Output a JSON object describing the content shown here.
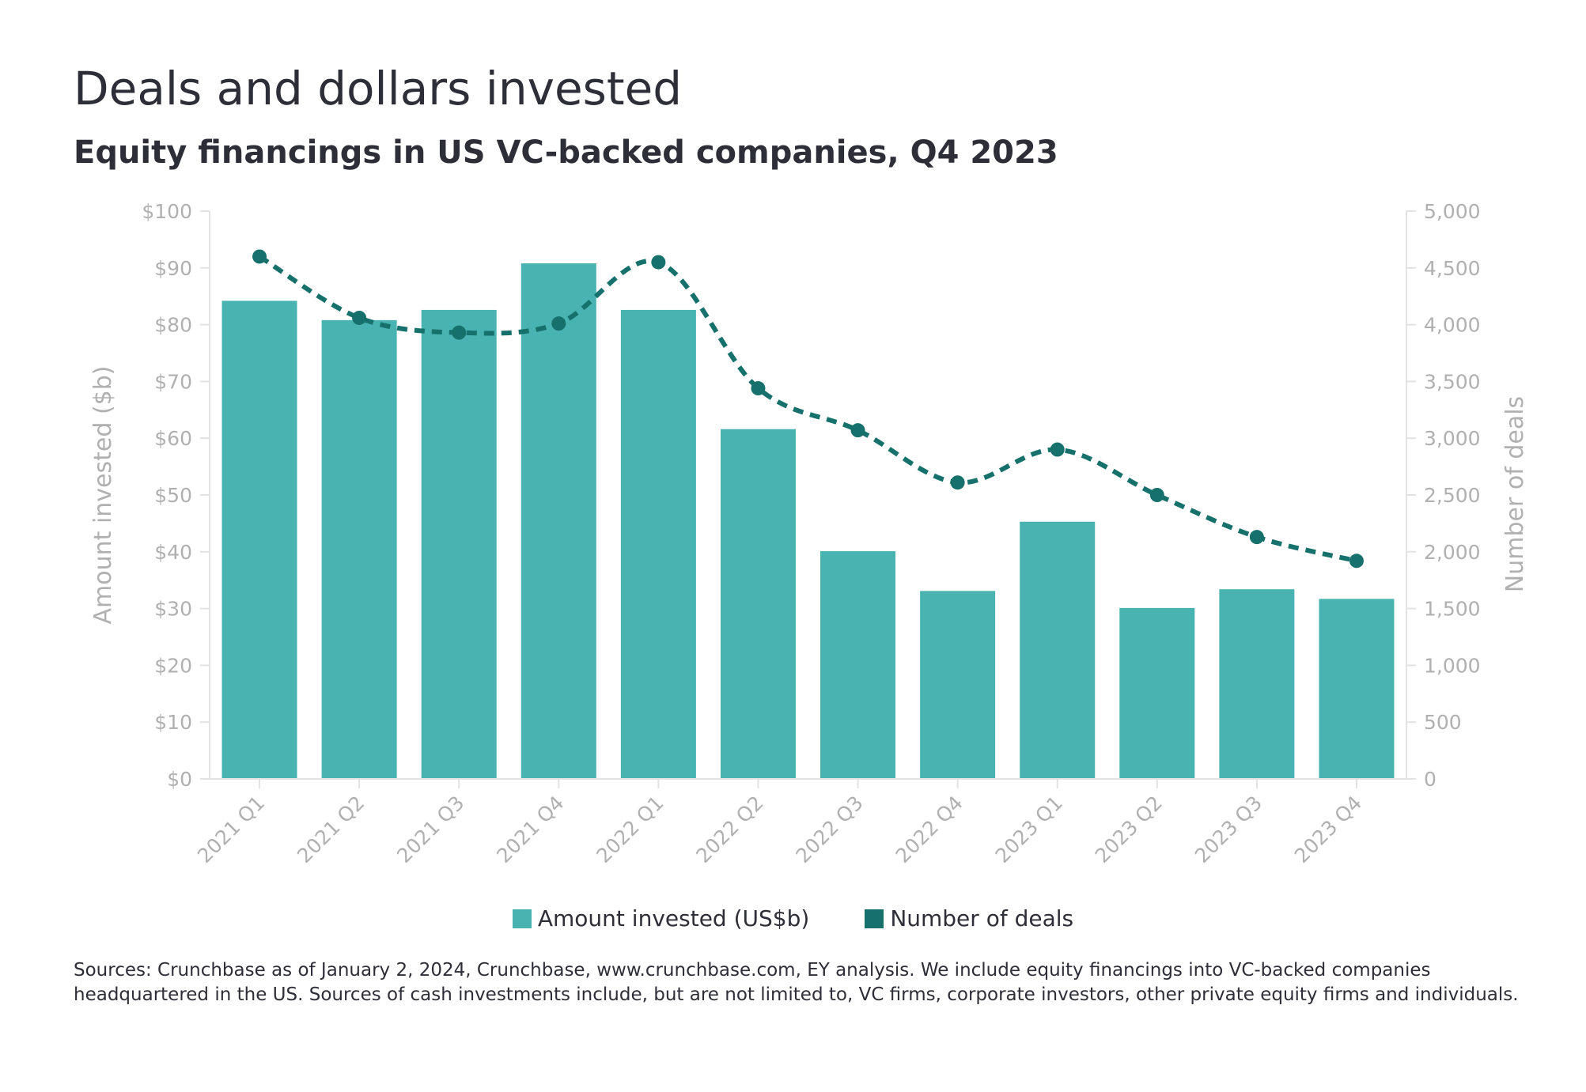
{
  "title": "Deals and dollars invested",
  "subtitle": "Equity financings in US VC-backed companies, Q4 2023",
  "source": "Sources: Crunchbase as of January 2, 2024, Crunchbase, www.crunchbase.com, EY analysis. We include equity financings into VC-backed companies headquartered in the US. Sources of cash investments include, but are not limited to, VC firms, corporate investors, other private equity firms and individuals.",
  "colors": {
    "bar": "#48b3b1",
    "line": "#16706b",
    "axis": "#e2e2e2",
    "tick_text": "#b0b0b0"
  },
  "chart_data": {
    "type": "bar",
    "categories": [
      "2021 Q1",
      "2021 Q2",
      "2021 Q3",
      "2021 Q4",
      "2022 Q1",
      "2022 Q2",
      "2022 Q3",
      "2022 Q4",
      "2023 Q1",
      "2023 Q2",
      "2023 Q3",
      "2023 Q4"
    ],
    "series": [
      {
        "name": "Amount invested (US$b)",
        "type": "bar",
        "axis": "left",
        "values": [
          84.2,
          80.8,
          82.6,
          90.8,
          82.6,
          61.6,
          40.1,
          33.1,
          45.3,
          30.1,
          33.4,
          31.7
        ]
      },
      {
        "name": "Number of deals",
        "type": "line",
        "style": "dashed",
        "markers": true,
        "axis": "right",
        "values": [
          4600,
          4060,
          3930,
          4010,
          4550,
          3440,
          3070,
          2610,
          2900,
          2500,
          2130,
          1920
        ]
      }
    ],
    "ylabel": "Amount invested ($b)",
    "y2label": "Number of deals",
    "ylim": [
      0,
      100
    ],
    "y2lim": [
      0,
      5000
    ],
    "yticks": [
      "$0",
      "$10",
      "$20",
      "$30",
      "$40",
      "$50",
      "$60",
      "$70",
      "$80",
      "$90",
      "$100"
    ],
    "y2ticks": [
      "0",
      "500",
      "1,000",
      "1,500",
      "2,000",
      "2,500",
      "3,000",
      "3,500",
      "4,000",
      "4,500",
      "5,000"
    ],
    "grid": false,
    "legend": "bottom-center"
  }
}
